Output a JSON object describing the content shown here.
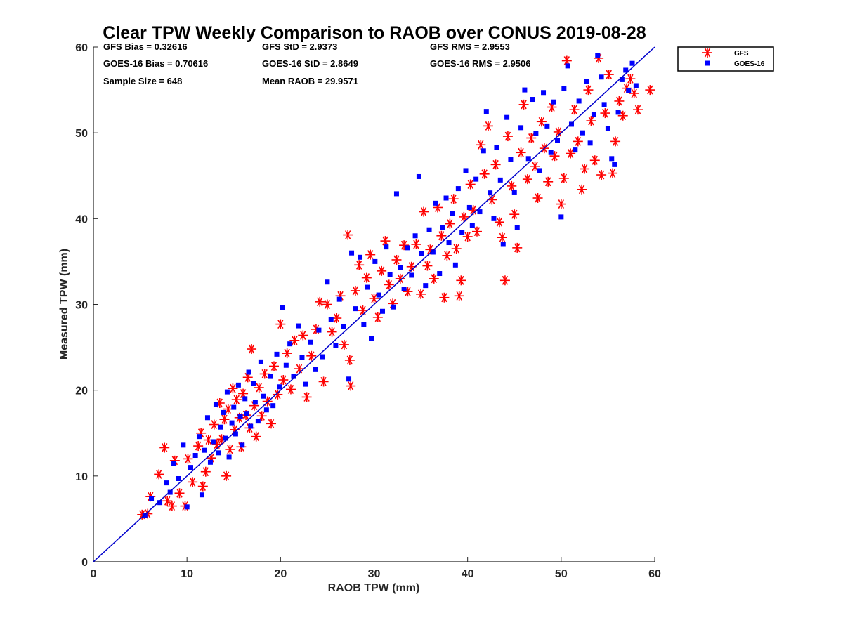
{
  "chart_data": {
    "type": "scatter",
    "title": "Clear TPW Weekly Comparison to RAOB over CONUS 2019-08-28",
    "xlabel": "RAOB TPW (mm)",
    "ylabel": "Measured TPW (mm)",
    "xlim": [
      0,
      60
    ],
    "ylim": [
      0,
      60
    ],
    "xticks": [
      0,
      10,
      20,
      30,
      40,
      50,
      60
    ],
    "yticks": [
      0,
      10,
      20,
      30,
      40,
      50,
      60
    ],
    "grid": false,
    "legend_position": "outside-top-right",
    "reference_line": {
      "from": [
        0,
        0
      ],
      "to": [
        60,
        60
      ],
      "color": "#0000cc"
    },
    "stats": [
      {
        "label": "GFS Bias = 0.32616"
      },
      {
        "label": "GFS StD = 2.9373"
      },
      {
        "label": "GFS RMS = 2.9553"
      },
      {
        "label": "GOES-16 Bias = 0.70616"
      },
      {
        "label": "GOES-16 StD = 2.8649"
      },
      {
        "label": "GOES-16 RMS = 2.9506"
      },
      {
        "label": "Sample Size = 648"
      },
      {
        "label": "Mean RAOB = 29.9571"
      }
    ],
    "series": [
      {
        "name": "GFS",
        "marker": "asterisk",
        "color": "#ff0000",
        "points": [
          [
            5.2,
            5.5
          ],
          [
            5.8,
            5.6
          ],
          [
            6.1,
            7.6
          ],
          [
            7.0,
            10.2
          ],
          [
            7.6,
            13.3
          ],
          [
            7.9,
            7.1
          ],
          [
            8.4,
            6.5
          ],
          [
            8.7,
            11.8
          ],
          [
            9.2,
            8.0
          ],
          [
            9.8,
            6.5
          ],
          [
            10.1,
            12.0
          ],
          [
            10.6,
            9.3
          ],
          [
            11.2,
            13.5
          ],
          [
            11.5,
            15.0
          ],
          [
            11.7,
            8.8
          ],
          [
            12.0,
            10.5
          ],
          [
            12.3,
            14.2
          ],
          [
            12.6,
            12.1
          ],
          [
            12.9,
            16.0
          ],
          [
            13.2,
            13.7
          ],
          [
            13.5,
            18.5
          ],
          [
            13.7,
            14.3
          ],
          [
            14.0,
            16.6
          ],
          [
            14.2,
            10.0
          ],
          [
            14.4,
            17.8
          ],
          [
            14.6,
            13.1
          ],
          [
            14.9,
            20.2
          ],
          [
            15.1,
            15.4
          ],
          [
            15.3,
            18.9
          ],
          [
            15.6,
            16.8
          ],
          [
            15.8,
            13.4
          ],
          [
            16.0,
            19.6
          ],
          [
            16.3,
            17.1
          ],
          [
            16.5,
            21.5
          ],
          [
            16.7,
            15.6
          ],
          [
            16.9,
            24.8
          ],
          [
            17.2,
            18.2
          ],
          [
            17.4,
            14.6
          ],
          [
            17.7,
            20.3
          ],
          [
            18.0,
            17.0
          ],
          [
            18.3,
            21.9
          ],
          [
            18.6,
            18.7
          ],
          [
            19.0,
            16.1
          ],
          [
            19.3,
            22.8
          ],
          [
            19.7,
            19.5
          ],
          [
            20.0,
            27.7
          ],
          [
            20.3,
            21.2
          ],
          [
            20.7,
            24.3
          ],
          [
            21.1,
            20.1
          ],
          [
            21.5,
            25.8
          ],
          [
            22.0,
            22.5
          ],
          [
            22.4,
            26.4
          ],
          [
            22.8,
            19.2
          ],
          [
            23.3,
            24.0
          ],
          [
            23.8,
            27.1
          ],
          [
            24.2,
            30.3
          ],
          [
            24.6,
            21.0
          ],
          [
            25.0,
            30.0
          ],
          [
            25.5,
            26.8
          ],
          [
            26.0,
            28.4
          ],
          [
            26.4,
            31.0
          ],
          [
            26.8,
            25.3
          ],
          [
            27.2,
            38.1
          ],
          [
            27.4,
            23.5
          ],
          [
            27.5,
            20.5
          ],
          [
            28.0,
            31.6
          ],
          [
            28.4,
            34.6
          ],
          [
            28.8,
            29.3
          ],
          [
            29.2,
            33.1
          ],
          [
            29.6,
            35.8
          ],
          [
            30.0,
            30.7
          ],
          [
            30.4,
            28.5
          ],
          [
            30.8,
            33.9
          ],
          [
            31.2,
            37.4
          ],
          [
            31.6,
            32.3
          ],
          [
            32.0,
            30.1
          ],
          [
            32.4,
            35.2
          ],
          [
            32.8,
            33.0
          ],
          [
            33.2,
            36.9
          ],
          [
            33.6,
            31.5
          ],
          [
            34.0,
            34.4
          ],
          [
            34.5,
            37.0
          ],
          [
            35.0,
            31.2
          ],
          [
            35.3,
            40.8
          ],
          [
            35.7,
            34.5
          ],
          [
            36.0,
            36.4
          ],
          [
            36.4,
            33.0
          ],
          [
            36.8,
            41.3
          ],
          [
            37.2,
            38.0
          ],
          [
            37.5,
            30.8
          ],
          [
            37.8,
            35.7
          ],
          [
            38.1,
            39.4
          ],
          [
            38.5,
            42.3
          ],
          [
            38.8,
            36.5
          ],
          [
            39.1,
            31.0
          ],
          [
            39.3,
            32.8
          ],
          [
            39.6,
            40.2
          ],
          [
            40.0,
            37.9
          ],
          [
            40.3,
            44.0
          ],
          [
            40.6,
            41.0
          ],
          [
            41.0,
            38.5
          ],
          [
            41.4,
            48.6
          ],
          [
            41.8,
            45.2
          ],
          [
            42.2,
            50.8
          ],
          [
            42.6,
            42.2
          ],
          [
            43.0,
            46.3
          ],
          [
            43.4,
            39.6
          ],
          [
            43.7,
            37.8
          ],
          [
            44.0,
            32.8
          ],
          [
            44.3,
            49.6
          ],
          [
            44.7,
            43.8
          ],
          [
            45.0,
            40.5
          ],
          [
            45.3,
            36.6
          ],
          [
            45.7,
            47.7
          ],
          [
            46.0,
            53.3
          ],
          [
            46.4,
            44.6
          ],
          [
            46.8,
            49.4
          ],
          [
            47.2,
            46.1
          ],
          [
            47.5,
            42.4
          ],
          [
            47.9,
            51.3
          ],
          [
            48.2,
            48.2
          ],
          [
            48.6,
            44.3
          ],
          [
            49.0,
            53.0
          ],
          [
            49.3,
            47.3
          ],
          [
            49.7,
            50.1
          ],
          [
            50.0,
            41.7
          ],
          [
            50.3,
            44.7
          ],
          [
            50.6,
            58.4
          ],
          [
            51.0,
            47.6
          ],
          [
            51.4,
            52.7
          ],
          [
            51.8,
            49.0
          ],
          [
            52.2,
            43.4
          ],
          [
            52.5,
            45.8
          ],
          [
            52.9,
            55.0
          ],
          [
            53.2,
            51.4
          ],
          [
            53.6,
            46.8
          ],
          [
            54.0,
            58.7
          ],
          [
            54.3,
            45.1
          ],
          [
            54.7,
            52.3
          ],
          [
            55.1,
            56.8
          ],
          [
            55.5,
            45.3
          ],
          [
            55.8,
            49.0
          ],
          [
            56.2,
            53.7
          ],
          [
            56.6,
            52.0
          ],
          [
            57.0,
            55.2
          ],
          [
            57.4,
            56.3
          ],
          [
            57.8,
            54.6
          ],
          [
            58.2,
            52.7
          ],
          [
            59.5,
            55.0
          ]
        ]
      },
      {
        "name": "GOES-16",
        "marker": "square",
        "color": "#0000ff",
        "points": [
          [
            5.5,
            5.4
          ],
          [
            6.2,
            7.4
          ],
          [
            7.1,
            6.9
          ],
          [
            7.8,
            9.2
          ],
          [
            8.2,
            8.1
          ],
          [
            8.6,
            11.5
          ],
          [
            9.1,
            9.7
          ],
          [
            9.6,
            13.6
          ],
          [
            10.0,
            6.4
          ],
          [
            10.4,
            11.0
          ],
          [
            10.9,
            12.4
          ],
          [
            11.3,
            14.6
          ],
          [
            11.6,
            7.8
          ],
          [
            11.9,
            13.0
          ],
          [
            12.2,
            16.8
          ],
          [
            12.5,
            11.6
          ],
          [
            12.8,
            14.0
          ],
          [
            13.1,
            18.3
          ],
          [
            13.4,
            12.7
          ],
          [
            13.6,
            15.7
          ],
          [
            13.9,
            17.4
          ],
          [
            14.1,
            14.4
          ],
          [
            14.3,
            19.8
          ],
          [
            14.5,
            12.2
          ],
          [
            14.8,
            16.2
          ],
          [
            15.0,
            18.0
          ],
          [
            15.2,
            14.9
          ],
          [
            15.5,
            20.6
          ],
          [
            15.7,
            16.9
          ],
          [
            15.9,
            13.6
          ],
          [
            16.2,
            19.0
          ],
          [
            16.4,
            17.3
          ],
          [
            16.6,
            22.1
          ],
          [
            16.8,
            15.8
          ],
          [
            17.1,
            20.8
          ],
          [
            17.3,
            18.6
          ],
          [
            17.6,
            16.4
          ],
          [
            17.9,
            23.3
          ],
          [
            18.2,
            19.3
          ],
          [
            18.5,
            17.7
          ],
          [
            18.9,
            21.6
          ],
          [
            19.2,
            18.2
          ],
          [
            19.6,
            24.2
          ],
          [
            19.9,
            20.4
          ],
          [
            20.2,
            29.6
          ],
          [
            20.6,
            22.9
          ],
          [
            21.0,
            25.4
          ],
          [
            21.4,
            21.6
          ],
          [
            21.9,
            27.5
          ],
          [
            22.3,
            23.8
          ],
          [
            22.7,
            20.7
          ],
          [
            23.2,
            25.6
          ],
          [
            23.7,
            22.4
          ],
          [
            24.1,
            27.0
          ],
          [
            24.5,
            23.9
          ],
          [
            25.0,
            32.6
          ],
          [
            25.4,
            28.2
          ],
          [
            25.9,
            25.2
          ],
          [
            26.3,
            30.6
          ],
          [
            26.7,
            27.4
          ],
          [
            27.3,
            21.3
          ],
          [
            27.6,
            36.0
          ],
          [
            28.0,
            29.5
          ],
          [
            28.5,
            35.5
          ],
          [
            28.9,
            27.7
          ],
          [
            29.3,
            32.0
          ],
          [
            29.7,
            26.0
          ],
          [
            30.1,
            35.0
          ],
          [
            30.5,
            31.1
          ],
          [
            30.9,
            29.2
          ],
          [
            31.3,
            36.7
          ],
          [
            31.7,
            33.5
          ],
          [
            32.1,
            29.7
          ],
          [
            32.4,
            42.9
          ],
          [
            32.8,
            34.3
          ],
          [
            33.2,
            31.8
          ],
          [
            33.6,
            36.6
          ],
          [
            34.0,
            33.4
          ],
          [
            34.4,
            38.0
          ],
          [
            34.8,
            44.9
          ],
          [
            35.1,
            35.9
          ],
          [
            35.5,
            32.2
          ],
          [
            35.9,
            38.7
          ],
          [
            36.3,
            36.1
          ],
          [
            36.6,
            41.8
          ],
          [
            37.0,
            33.6
          ],
          [
            37.3,
            39.0
          ],
          [
            37.7,
            42.4
          ],
          [
            38.0,
            37.2
          ],
          [
            38.4,
            40.6
          ],
          [
            38.7,
            34.6
          ],
          [
            39.0,
            43.5
          ],
          [
            39.4,
            38.4
          ],
          [
            39.8,
            45.6
          ],
          [
            40.2,
            41.3
          ],
          [
            40.5,
            39.2
          ],
          [
            40.9,
            44.6
          ],
          [
            41.3,
            40.8
          ],
          [
            41.7,
            47.9
          ],
          [
            42.0,
            52.5
          ],
          [
            42.4,
            43.0
          ],
          [
            42.8,
            40.0
          ],
          [
            43.1,
            48.3
          ],
          [
            43.5,
            44.5
          ],
          [
            43.8,
            37.0
          ],
          [
            44.2,
            51.8
          ],
          [
            44.6,
            46.9
          ],
          [
            45.0,
            43.1
          ],
          [
            45.3,
            39.0
          ],
          [
            45.7,
            50.6
          ],
          [
            46.1,
            55.0
          ],
          [
            46.5,
            47.0
          ],
          [
            46.9,
            53.9
          ],
          [
            47.3,
            49.9
          ],
          [
            47.7,
            45.6
          ],
          [
            48.1,
            54.7
          ],
          [
            48.5,
            50.8
          ],
          [
            48.9,
            47.7
          ],
          [
            49.2,
            53.6
          ],
          [
            49.6,
            49.1
          ],
          [
            50.0,
            40.2
          ],
          [
            50.3,
            55.2
          ],
          [
            50.7,
            57.8
          ],
          [
            51.1,
            51.0
          ],
          [
            51.5,
            48.0
          ],
          [
            51.9,
            53.7
          ],
          [
            52.3,
            50.0
          ],
          [
            52.7,
            56.0
          ],
          [
            53.1,
            48.8
          ],
          [
            53.5,
            52.1
          ],
          [
            53.9,
            59.0
          ],
          [
            54.3,
            56.5
          ],
          [
            54.6,
            53.3
          ],
          [
            55.0,
            50.5
          ],
          [
            55.4,
            47.0
          ],
          [
            55.7,
            46.3
          ],
          [
            56.1,
            52.4
          ],
          [
            56.5,
            56.2
          ],
          [
            56.9,
            57.3
          ],
          [
            57.2,
            54.9
          ],
          [
            57.6,
            58.1
          ],
          [
            58.0,
            55.5
          ]
        ]
      }
    ]
  }
}
